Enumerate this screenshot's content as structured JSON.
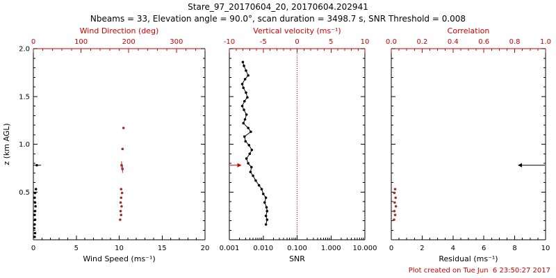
{
  "header": {
    "title": "Stare_97_20170604_20, 20170604.202941",
    "subtitle": "Nbeams = 33, Elevation angle = 90.0°, scan duration = 3498.7 s, SNR Threshold = 0.008"
  },
  "footer": {
    "created": "Plot created on Tue Jun  6 23:50:27 2017"
  },
  "colors": {
    "axis_red": "#cc0000",
    "dot_red": "#a52a2a",
    "black": "#000000",
    "background": "#ffffff"
  },
  "chart_data": [
    {
      "type": "scatter",
      "name": "wind-panel",
      "show_y_labels": true,
      "ylabel": "z (km AGL)",
      "y_range": [
        0,
        2
      ],
      "y_ticks": [
        0.5,
        1.0,
        1.5,
        2.0
      ],
      "y_tick_labels": [
        "0.5",
        "1.0",
        "1.5",
        "2.0"
      ],
      "y_minor": 0.1,
      "bottom_axis": {
        "label": "Wind Speed (ms⁻¹)",
        "range": [
          0,
          20
        ],
        "ticks": [
          0,
          5,
          10,
          15,
          20
        ],
        "minor": 1
      },
      "top_axis": {
        "label": "Wind Direction (deg)",
        "range": [
          0,
          360
        ],
        "ticks": [
          0,
          100,
          200,
          300
        ],
        "minor": 20
      },
      "series": [
        {
          "name": "wind-speed-points",
          "axis": "bottom",
          "color": "#000000",
          "marker": "dot",
          "points": [
            [
              0.15,
              0.03
            ],
            [
              0.2,
              0.07
            ],
            [
              0.1,
              0.12
            ],
            [
              0.15,
              0.16
            ],
            [
              0.2,
              0.21
            ],
            [
              0.15,
              0.26
            ],
            [
              0.2,
              0.3
            ],
            [
              0.25,
              0.35
            ],
            [
              0.2,
              0.39
            ],
            [
              0.15,
              0.44
            ],
            [
              0.2,
              0.49
            ],
            [
              0.3,
              0.53
            ],
            [
              0.4,
              0.78
            ]
          ]
        },
        {
          "name": "wind-speed-errorbar",
          "axis": "bottom",
          "color": "#000000",
          "marker": "hbar",
          "points": [
            [
              0.4,
              0.78,
              0.5
            ]
          ]
        },
        {
          "name": "wind-direction-points",
          "axis": "top",
          "color": "#a52a2a",
          "marker": "dot",
          "points": [
            [
              182,
              0.21
            ],
            [
              184,
              0.26
            ],
            [
              183,
              0.3
            ],
            [
              185,
              0.35
            ],
            [
              183,
              0.39
            ],
            [
              184,
              0.44
            ],
            [
              186,
              0.49
            ],
            [
              184,
              0.53
            ],
            [
              187,
              0.74,
              0.04
            ],
            [
              185,
              0.78,
              0.04
            ],
            [
              187,
              0.95
            ],
            [
              189,
              1.17
            ]
          ]
        }
      ]
    },
    {
      "type": "scatter",
      "name": "snr-panel",
      "show_y_labels": false,
      "refline_top": 0,
      "bottom_axis": {
        "label": "SNR",
        "scale": "log",
        "range": [
          0.001,
          10
        ],
        "ticks": [
          0.001,
          0.01,
          0.1,
          1,
          10
        ],
        "tick_labels": [
          "0.001",
          "0.010",
          "0.100",
          "1.000",
          "10.000"
        ]
      },
      "top_axis": {
        "label": "Vertical velocity (ms⁻¹)",
        "range": [
          -10,
          10
        ],
        "ticks": [
          -10,
          -5,
          0,
          5,
          10
        ],
        "minor": 1
      },
      "series": [
        {
          "name": "snr-profile",
          "axis": "bottom",
          "color": "#000000",
          "marker": "line+dot",
          "points": [
            [
              0.012,
              0.16
            ],
            [
              0.013,
              0.21
            ],
            [
              0.012,
              0.25
            ],
            [
              0.013,
              0.3
            ],
            [
              0.0125,
              0.34
            ],
            [
              0.011,
              0.39
            ],
            [
              0.012,
              0.44
            ],
            [
              0.01,
              0.48
            ],
            [
              0.009,
              0.53
            ],
            [
              0.0075,
              0.57
            ],
            [
              0.006,
              0.62
            ],
            [
              0.005,
              0.67
            ],
            [
              0.0042,
              0.71
            ],
            [
              0.0045,
              0.76
            ],
            [
              0.0036,
              0.8
            ],
            [
              0.0032,
              0.85
            ],
            [
              0.004,
              0.9
            ],
            [
              0.0046,
              0.94
            ],
            [
              0.0038,
              0.99
            ],
            [
              0.003,
              1.03
            ],
            [
              0.0028,
              1.08
            ],
            [
              0.0043,
              1.13
            ],
            [
              0.0036,
              1.17
            ],
            [
              0.0026,
              1.22
            ],
            [
              0.0029,
              1.26
            ],
            [
              0.0032,
              1.31
            ],
            [
              0.0027,
              1.36
            ],
            [
              0.0024,
              1.4
            ],
            [
              0.0028,
              1.45
            ],
            [
              0.0034,
              1.49
            ],
            [
              0.0031,
              1.54
            ],
            [
              0.0026,
              1.59
            ],
            [
              0.0024,
              1.63
            ],
            [
              0.0029,
              1.68
            ],
            [
              0.0036,
              1.72
            ],
            [
              0.0031,
              1.77
            ],
            [
              0.0027,
              1.82
            ],
            [
              0.0025,
              1.86
            ]
          ]
        },
        {
          "name": "vertical-velocity-offscale-arrow",
          "axis": "top",
          "color": "#cc0000",
          "marker": "arrow-right",
          "points": [
            [
              -8.2,
              0.78
            ]
          ]
        }
      ]
    },
    {
      "type": "scatter",
      "name": "residual-panel",
      "show_y_labels": false,
      "bottom_axis": {
        "label": "Residual (ms⁻¹)",
        "range": [
          0,
          10
        ],
        "ticks": [
          0,
          2,
          4,
          6,
          8,
          10
        ],
        "minor": 0.5
      },
      "top_axis": {
        "label": "Correlation",
        "range": [
          0,
          1
        ],
        "ticks": [
          0,
          0.2,
          0.4,
          0.6,
          0.8,
          1.0
        ],
        "tick_labels": [
          "0.0",
          "0.2",
          "0.4",
          "0.6",
          "0.8",
          "1.0"
        ],
        "minor": 0.05
      },
      "series": [
        {
          "name": "correlation-points",
          "axis": "top",
          "color": "#a52a2a",
          "marker": "dot",
          "points": [
            [
              0.018,
              0.21
            ],
            [
              0.025,
              0.26
            ],
            [
              0.02,
              0.3
            ],
            [
              0.03,
              0.35
            ],
            [
              0.022,
              0.39
            ],
            [
              0.028,
              0.44
            ],
            [
              0.02,
              0.49
            ],
            [
              0.025,
              0.53
            ]
          ]
        },
        {
          "name": "residual-offscale-arrow",
          "axis": "bottom",
          "color": "#000000",
          "marker": "arrow-left",
          "points": [
            [
              8.2,
              0.78
            ]
          ]
        }
      ]
    }
  ]
}
